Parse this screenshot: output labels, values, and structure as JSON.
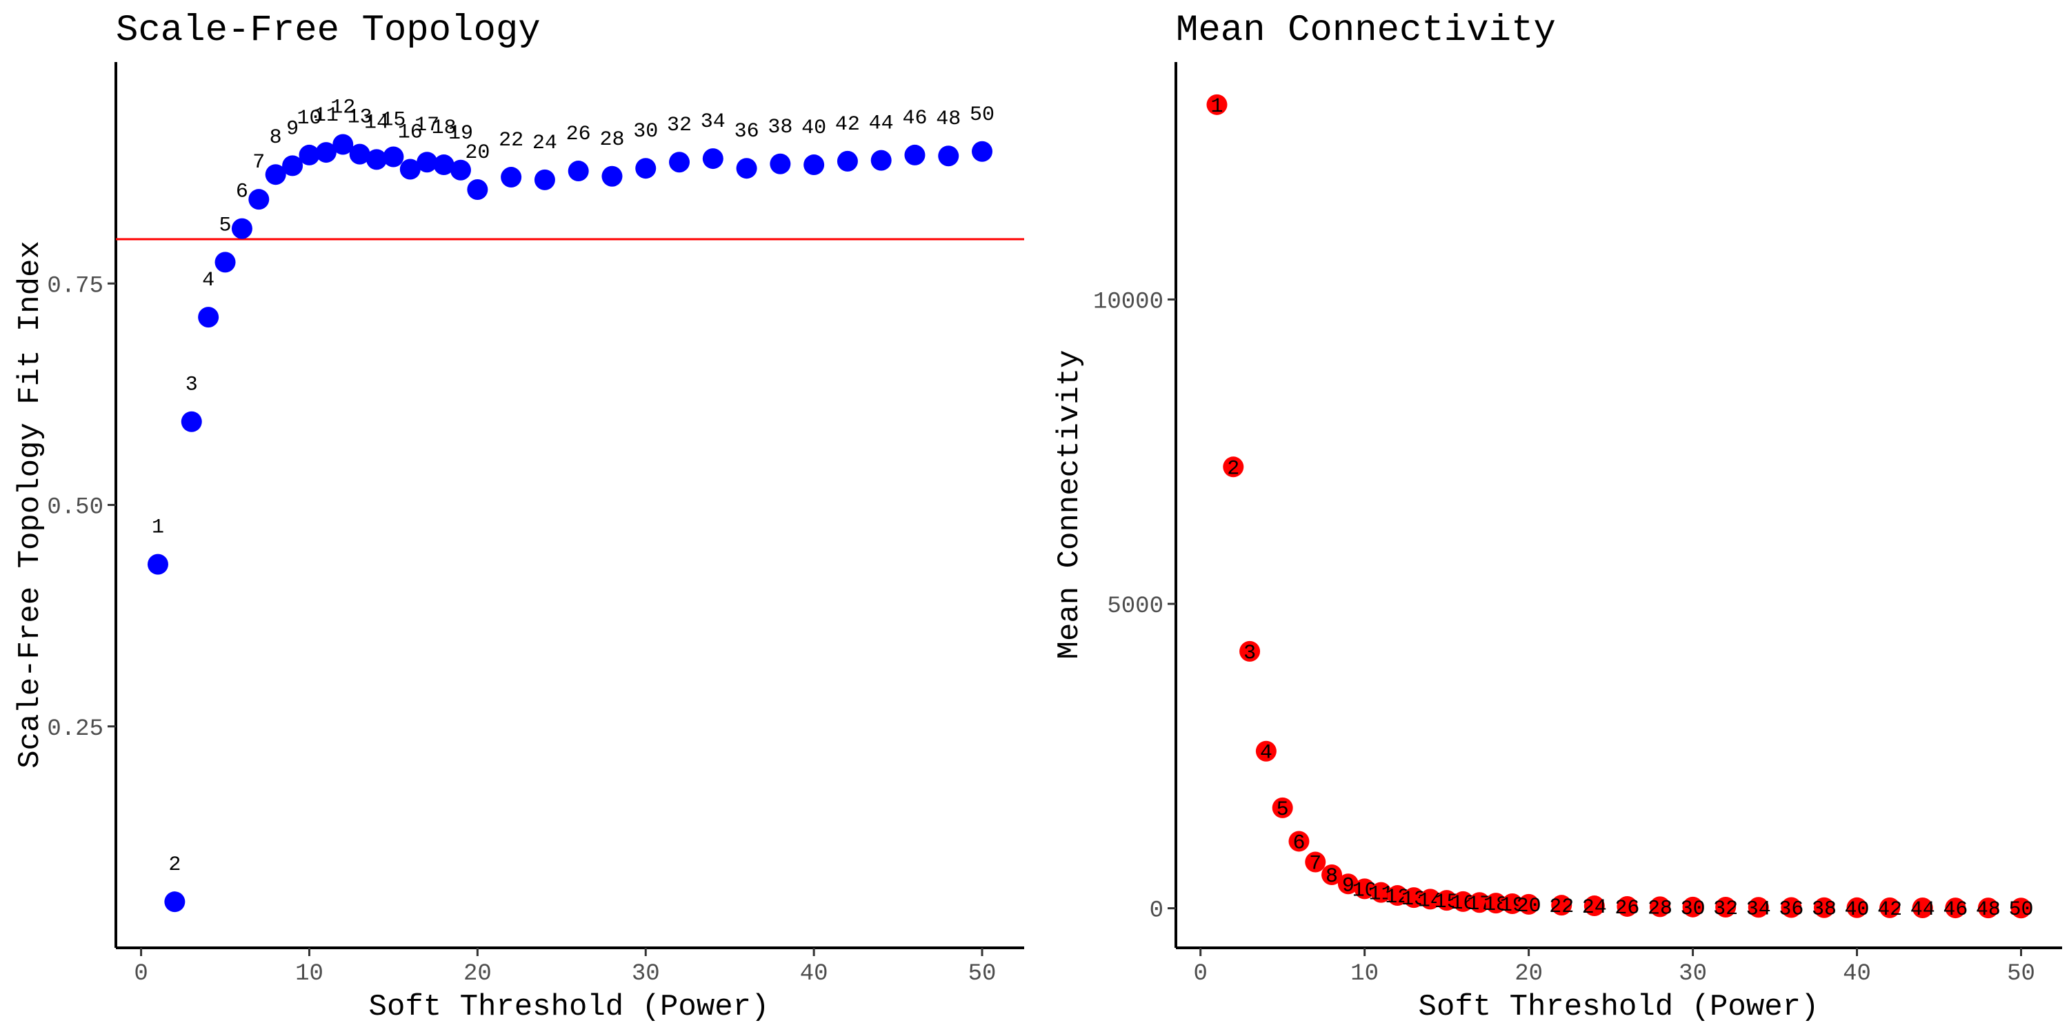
{
  "chart_data": [
    {
      "type": "scatter",
      "title": "Scale-Free Topology",
      "xlabel": "Soft Threshold (Power)",
      "ylabel": "Scale-Free Topology Fit Index",
      "xlim": [
        -1.5,
        52.5
      ],
      "ylim": [
        0.0,
        1.0
      ],
      "xticks": [
        "0",
        "10",
        "20",
        "30",
        "40",
        "50"
      ],
      "yticks": [
        "0.25",
        "0.50",
        "0.75"
      ],
      "reference_line": {
        "y": 0.8,
        "color": "#ff0000"
      },
      "grid": false,
      "point_color": "#0000ff",
      "x": [
        1,
        2,
        3,
        4,
        5,
        6,
        7,
        8,
        9,
        10,
        11,
        12,
        13,
        14,
        15,
        16,
        17,
        18,
        19,
        20,
        22,
        24,
        26,
        28,
        30,
        32,
        34,
        36,
        38,
        40,
        42,
        44,
        46,
        48,
        50
      ],
      "y": [
        0.433,
        0.052,
        0.594,
        0.712,
        0.774,
        0.812,
        0.845,
        0.873,
        0.883,
        0.895,
        0.898,
        0.907,
        0.896,
        0.89,
        0.893,
        0.879,
        0.887,
        0.884,
        0.878,
        0.856,
        0.87,
        0.867,
        0.877,
        0.871,
        0.88,
        0.887,
        0.891,
        0.88,
        0.885,
        0.884,
        0.888,
        0.889,
        0.895,
        0.894,
        0.899
      ],
      "labels": [
        "1",
        "2",
        "3",
        "4",
        "5",
        "6",
        "7",
        "8",
        "9",
        "10",
        "11",
        "12",
        "13",
        "14",
        "15",
        "16",
        "17",
        "18",
        "19",
        "20",
        "22",
        "24",
        "26",
        "28",
        "30",
        "32",
        "34",
        "36",
        "38",
        "40",
        "42",
        "44",
        "46",
        "48",
        "50"
      ]
    },
    {
      "type": "scatter",
      "title": "Mean Connectivity",
      "xlabel": "Soft Threshold (Power)",
      "ylabel": "Mean Connectivity",
      "xlim": [
        -1.5,
        52.5
      ],
      "ylim": [
        -650,
        13900
      ],
      "xticks": [
        "0",
        "10",
        "20",
        "30",
        "40",
        "50"
      ],
      "yticks": [
        "0",
        "5000",
        "10000"
      ],
      "grid": false,
      "point_color": "#ff0000",
      "x": [
        1,
        2,
        3,
        4,
        5,
        6,
        7,
        8,
        9,
        10,
        11,
        12,
        13,
        14,
        15,
        16,
        17,
        18,
        19,
        20,
        22,
        24,
        26,
        28,
        30,
        32,
        34,
        36,
        38,
        40,
        42,
        44,
        46,
        48,
        50
      ],
      "y": [
        13200,
        7250,
        4220,
        2580,
        1650,
        1100,
        760,
        550,
        400,
        320,
        260,
        210,
        175,
        150,
        130,
        110,
        95,
        85,
        75,
        65,
        50,
        40,
        30,
        25,
        20,
        18,
        15,
        12,
        10,
        9,
        8,
        7,
        6,
        5,
        4
      ],
      "labels": [
        "1",
        "2",
        "3",
        "4",
        "5",
        "6",
        "7",
        "8",
        "9",
        "10",
        "11",
        "12",
        "13",
        "14",
        "15",
        "16",
        "17",
        "18",
        "19",
        "20",
        "22",
        "24",
        "26",
        "28",
        "30",
        "32",
        "34",
        "36",
        "38",
        "40",
        "42",
        "44",
        "46",
        "48",
        "50"
      ]
    }
  ]
}
